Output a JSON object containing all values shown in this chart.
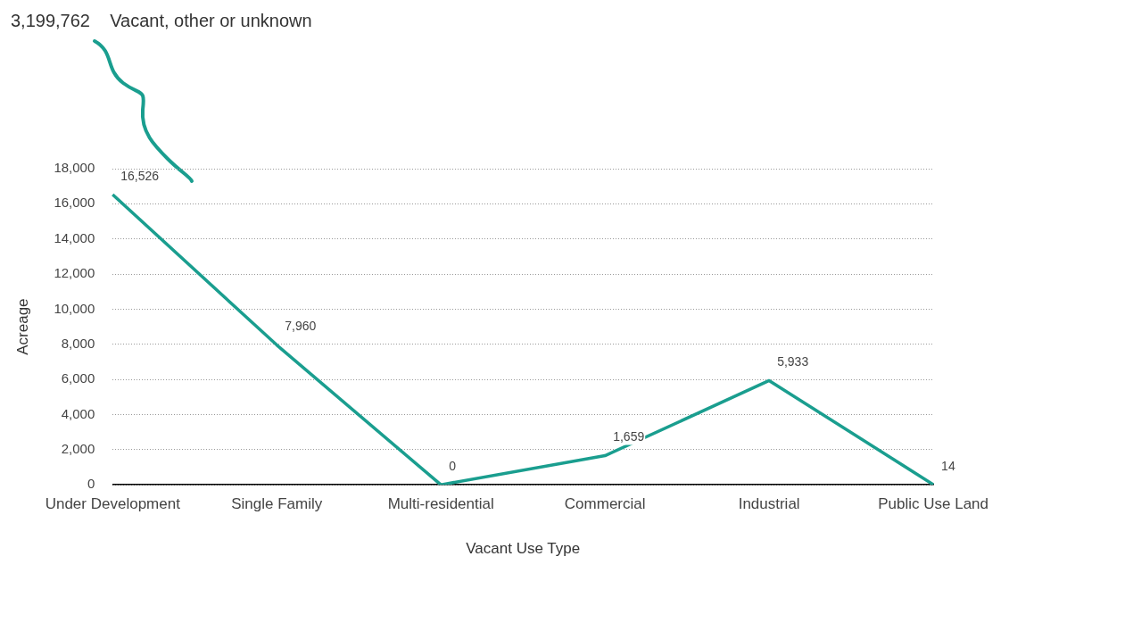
{
  "chart_data": {
    "type": "line",
    "xlabel": "Vacant Use Type",
    "ylabel": "Acreage",
    "categories": [
      "Under Development",
      "Single Family",
      "Multi-residential",
      "Commercial",
      "Industrial",
      "Public Use Land"
    ],
    "series": [
      {
        "color": "#1a9e8f",
        "values": [
          16526,
          7960,
          0,
          1659,
          5933,
          14
        ],
        "value_labels": [
          "16,526",
          "7,960",
          "0",
          "1,659",
          "5,933",
          "14"
        ]
      }
    ],
    "ylim": [
      0,
      18000
    ],
    "yticks": [
      {
        "value": 0,
        "label": "0"
      },
      {
        "value": 2000,
        "label": "2,000"
      },
      {
        "value": 4000,
        "label": "4,000"
      },
      {
        "value": 6000,
        "label": "6,000"
      },
      {
        "value": 8000,
        "label": "8,000"
      },
      {
        "value": 10000,
        "label": "10,000"
      },
      {
        "value": 12000,
        "label": "12,000"
      },
      {
        "value": 14000,
        "label": "14,000"
      },
      {
        "value": 16000,
        "label": "16,000"
      },
      {
        "value": 18000,
        "label": "18,000"
      }
    ],
    "grid": "y",
    "legend": false,
    "marker": "none",
    "line_style": "solid",
    "annotations": [
      "3,199,762    Vacant, other or unknown"
    ]
  }
}
